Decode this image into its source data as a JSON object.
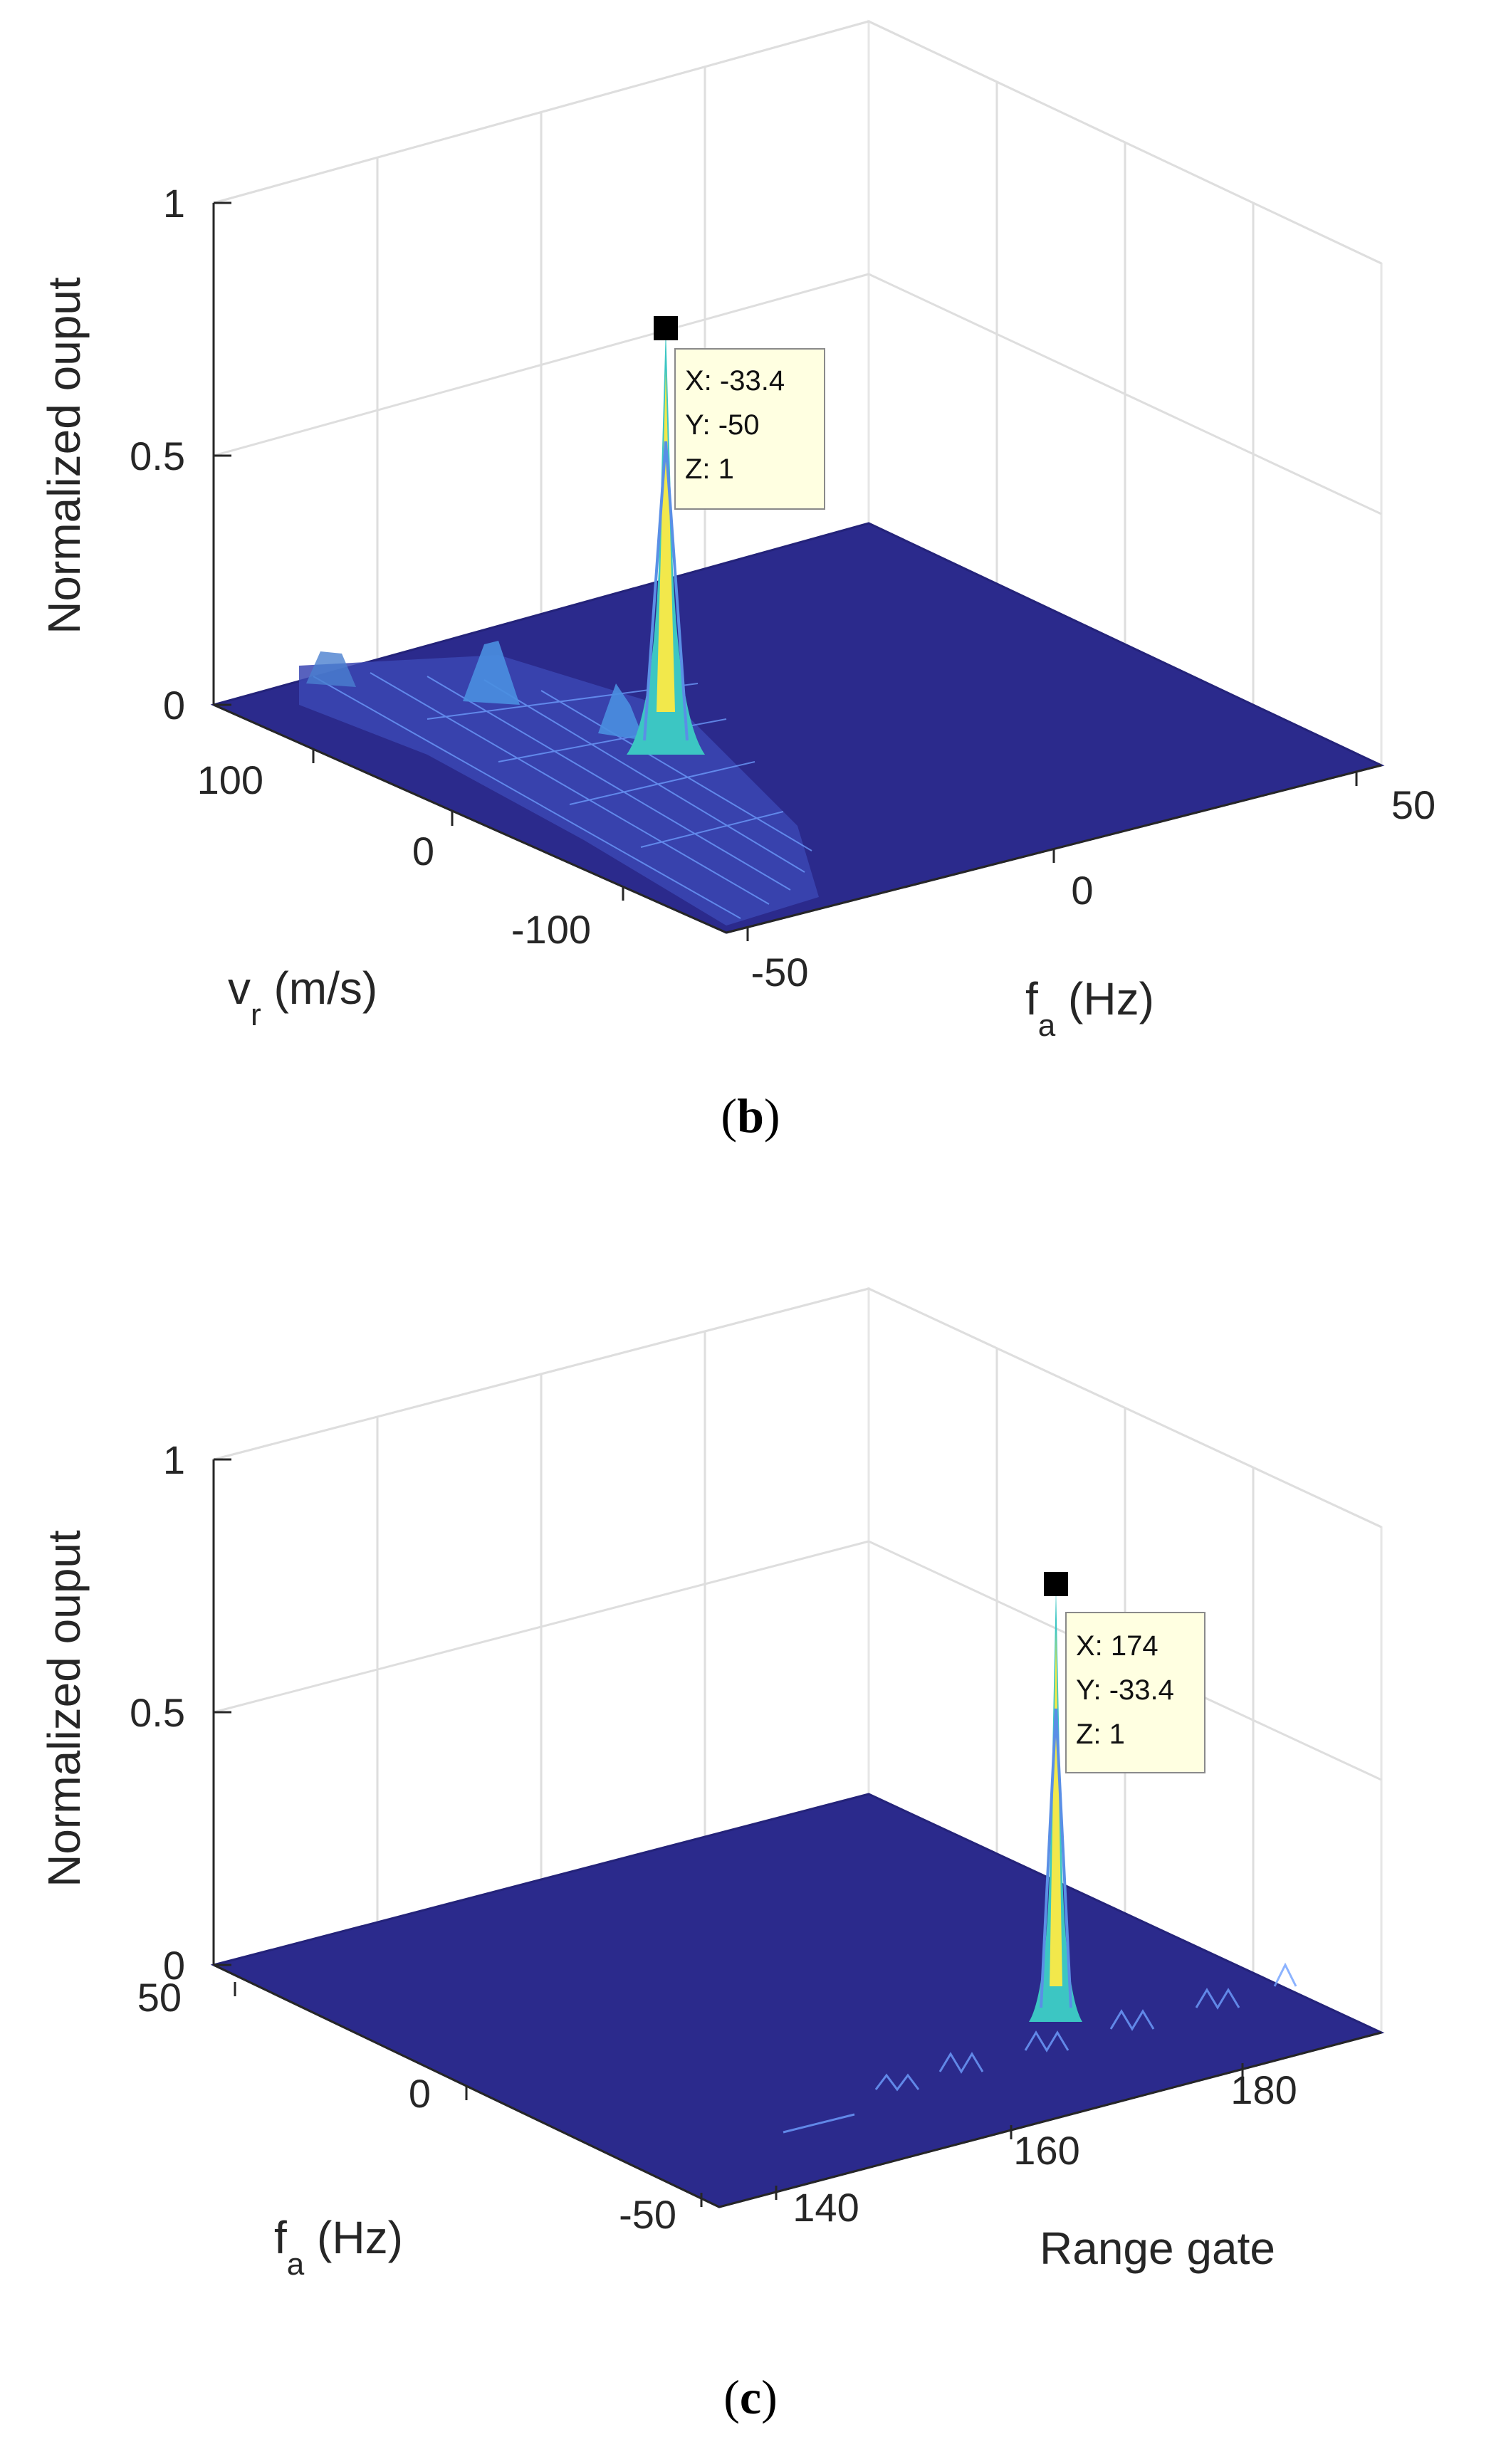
{
  "chart_data": [
    {
      "type": "surface",
      "panel": "b",
      "caption_open": "(",
      "caption_letter": "b",
      "caption_close": ")",
      "zlabel": "Normalized ouput",
      "zticks": [
        "0",
        "0.5",
        "1"
      ],
      "zlim": [
        0,
        1
      ],
      "ylabel_main": "v",
      "ylabel_sub": "r",
      "ylabel_rest": " (m/s)",
      "yticks": [
        "100",
        "0",
        "-100"
      ],
      "xlabel_main": "f",
      "xlabel_sub": "a",
      "xlabel_rest": " (Hz)",
      "xticks": [
        "-50",
        "0",
        "50"
      ],
      "peak": {
        "x": -33.4,
        "y": -50,
        "z": 1
      },
      "datatip": {
        "x": "X: -33.4",
        "y": "Y: -50",
        "z": "Z: 1"
      },
      "colors": {
        "floor": "#2b2a8c",
        "floor_edge": "#24237a",
        "peak_cyan": "#3cc6c3",
        "peak_yellow": "#f2e84b",
        "ridge": "#5a8fe6",
        "grid": "#dedede",
        "tip_bg": "#ffffe1"
      }
    },
    {
      "type": "surface",
      "panel": "c",
      "caption_open": "(",
      "caption_letter": "c",
      "caption_close": ")",
      "zlabel": "Normalized ouput",
      "zticks": [
        "0",
        "0.5",
        "1"
      ],
      "zlim": [
        0,
        1
      ],
      "ylabel_main": "f",
      "ylabel_sub": "a",
      "ylabel_rest": " (Hz)",
      "yticks": [
        "50",
        "0",
        "-50"
      ],
      "xlabel_main": "Range gate",
      "xticks": [
        "140",
        "160",
        "180"
      ],
      "peak": {
        "x": 174,
        "y": -33.4,
        "z": 1
      },
      "datatip": {
        "x": "X: 174",
        "y": "Y: -33.4",
        "z": "Z: 1"
      },
      "colors": {
        "floor": "#2b2a8c",
        "floor_edge": "#24237a",
        "peak_cyan": "#3cc6c3",
        "peak_yellow": "#f2e84b",
        "ridge": "#5a8fe6",
        "grid": "#dedede",
        "tip_bg": "#ffffe1"
      }
    }
  ]
}
